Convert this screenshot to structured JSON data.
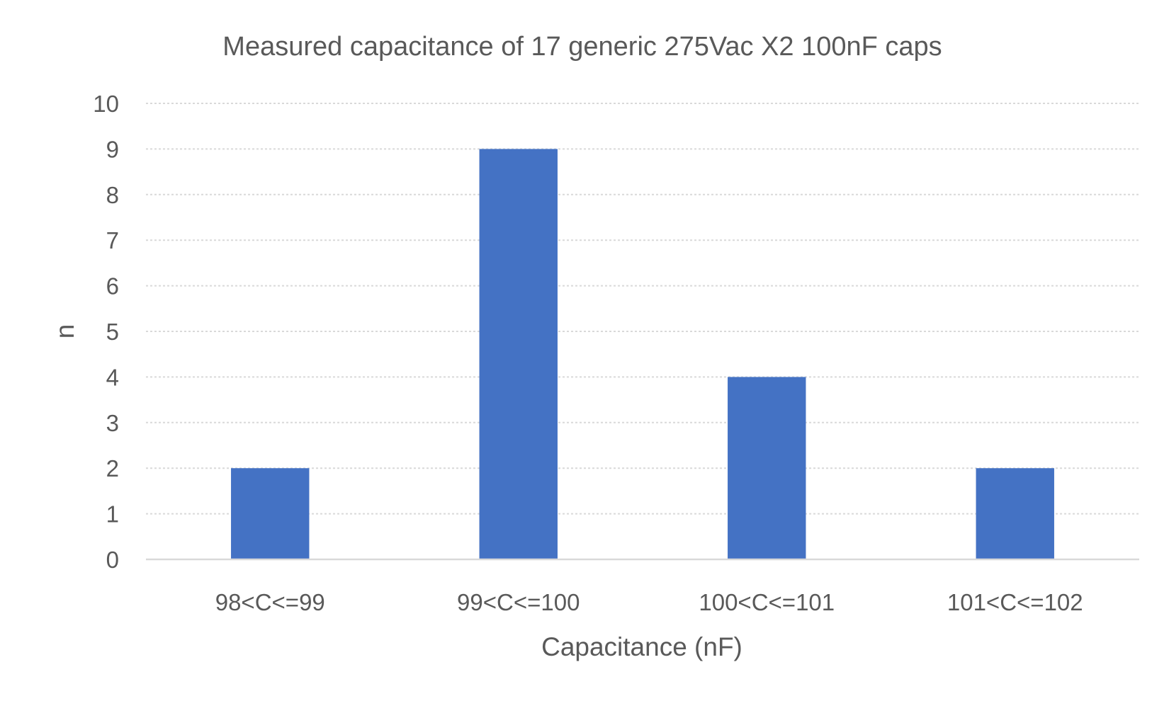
{
  "chart_data": {
    "type": "bar",
    "title": "Measured capacitance of 17 generic 275Vac X2 100nF caps",
    "xlabel": "Capacitance (nF)",
    "ylabel": "n",
    "categories": [
      "98<C<=99",
      "99<C<=100",
      "100<C<=101",
      "101<C<=102"
    ],
    "values": [
      2,
      9,
      4,
      2
    ],
    "ylim": [
      0,
      10
    ],
    "yticks": [
      "0",
      "1",
      "2",
      "3",
      "4",
      "5",
      "6",
      "7",
      "8",
      "9",
      "10"
    ],
    "grid": true,
    "bar_color": "#4472c4"
  }
}
